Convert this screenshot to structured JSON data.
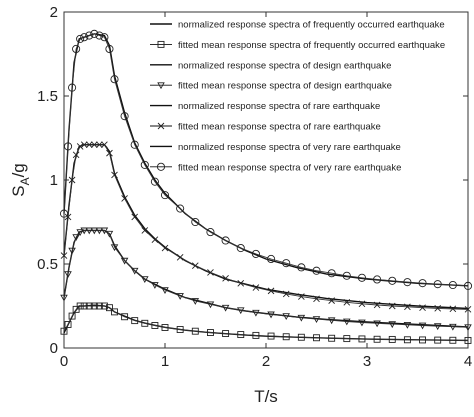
{
  "chart_data": {
    "type": "line",
    "xlabel": "T/s",
    "ylabel_main": "S",
    "ylabel_sub": "A",
    "ylabel_tail": "/g",
    "xlim": [
      0,
      4
    ],
    "ylim": [
      0,
      2
    ],
    "x_ticks": [
      0,
      1,
      2,
      3,
      4
    ],
    "x_tick_labels": [
      "0",
      "1",
      "2",
      "3",
      "4"
    ],
    "y_ticks": [
      0,
      0.5,
      1,
      1.5,
      2
    ],
    "y_tick_labels": [
      "0",
      "0.5",
      "1",
      "1.5",
      "2"
    ],
    "grid": false,
    "legend_position": "top-right",
    "legend": [
      {
        "label": "normalized response spectra of frequently occurred earthquake",
        "marker": "none"
      },
      {
        "label": "fitted mean response spectra of frequently occurred earthquake",
        "marker": "square"
      },
      {
        "label": "normalized response spectra of design earthquake",
        "marker": "none"
      },
      {
        "label": "fitted mean response spectra of design earthquake",
        "marker": "triangle-down"
      },
      {
        "label": "normalized response spectra of rare earthquake",
        "marker": "none"
      },
      {
        "label": "fitted mean response spectra of rare earthquake",
        "marker": "x"
      },
      {
        "label": "normalized response spectra of very rare earthquake",
        "marker": "none"
      },
      {
        "label": "fitted mean response spectra of very rare earthquake",
        "marker": "circle"
      }
    ],
    "series": [
      {
        "group": "frequently occurred",
        "normalized": [
          [
            0,
            0.09
          ],
          [
            0.05,
            0.15
          ],
          [
            0.1,
            0.21
          ],
          [
            0.15,
            0.25
          ],
          [
            0.2,
            0.25
          ],
          [
            0.3,
            0.255
          ],
          [
            0.4,
            0.25
          ],
          [
            0.45,
            0.24
          ],
          [
            0.5,
            0.215
          ],
          [
            0.6,
            0.19
          ],
          [
            0.7,
            0.165
          ],
          [
            0.8,
            0.148
          ],
          [
            0.9,
            0.135
          ],
          [
            1,
            0.123
          ],
          [
            1.2,
            0.106
          ],
          [
            1.4,
            0.094
          ],
          [
            1.6,
            0.085
          ],
          [
            1.8,
            0.077
          ],
          [
            2,
            0.07
          ],
          [
            2.3,
            0.064
          ],
          [
            2.6,
            0.059
          ],
          [
            3,
            0.053
          ],
          [
            3.5,
            0.049
          ],
          [
            4,
            0.045
          ]
        ],
        "fitted": [
          [
            0,
            0.1
          ],
          [
            0.04,
            0.14
          ],
          [
            0.08,
            0.19
          ],
          [
            0.12,
            0.23
          ],
          [
            0.16,
            0.25
          ],
          [
            0.2,
            0.25
          ],
          [
            0.25,
            0.25
          ],
          [
            0.3,
            0.25
          ],
          [
            0.35,
            0.25
          ],
          [
            0.4,
            0.25
          ],
          [
            0.45,
            0.24
          ],
          [
            0.5,
            0.215
          ],
          [
            0.6,
            0.186
          ],
          [
            0.7,
            0.163
          ],
          [
            0.8,
            0.147
          ],
          [
            0.9,
            0.134
          ],
          [
            1,
            0.122
          ],
          [
            1.15,
            0.11
          ],
          [
            1.3,
            0.1
          ],
          [
            1.45,
            0.092
          ],
          [
            1.6,
            0.086
          ],
          [
            1.75,
            0.08
          ],
          [
            1.9,
            0.075
          ],
          [
            2.05,
            0.071
          ],
          [
            2.2,
            0.067
          ],
          [
            2.35,
            0.064
          ],
          [
            2.5,
            0.061
          ],
          [
            2.65,
            0.058
          ],
          [
            2.8,
            0.056
          ],
          [
            2.95,
            0.054
          ],
          [
            3.1,
            0.052
          ],
          [
            3.25,
            0.051
          ],
          [
            3.4,
            0.049
          ],
          [
            3.55,
            0.048
          ],
          [
            3.7,
            0.047
          ],
          [
            3.85,
            0.046
          ],
          [
            4,
            0.045
          ]
        ]
      },
      {
        "group": "design",
        "normalized": [
          [
            0,
            0.3
          ],
          [
            0.05,
            0.48
          ],
          [
            0.1,
            0.63
          ],
          [
            0.15,
            0.69
          ],
          [
            0.2,
            0.7
          ],
          [
            0.3,
            0.7
          ],
          [
            0.4,
            0.7
          ],
          [
            0.45,
            0.68
          ],
          [
            0.5,
            0.61
          ],
          [
            0.6,
            0.52
          ],
          [
            0.7,
            0.46
          ],
          [
            0.8,
            0.41
          ],
          [
            0.9,
            0.38
          ],
          [
            1,
            0.35
          ],
          [
            1.2,
            0.3
          ],
          [
            1.4,
            0.27
          ],
          [
            1.6,
            0.24
          ],
          [
            1.8,
            0.22
          ],
          [
            2,
            0.205
          ],
          [
            2.3,
            0.185
          ],
          [
            2.6,
            0.17
          ],
          [
            3,
            0.155
          ],
          [
            3.5,
            0.14
          ],
          [
            4,
            0.125
          ]
        ],
        "fitted": [
          [
            0,
            0.3
          ],
          [
            0.04,
            0.44
          ],
          [
            0.08,
            0.58
          ],
          [
            0.12,
            0.66
          ],
          [
            0.16,
            0.69
          ],
          [
            0.2,
            0.7
          ],
          [
            0.25,
            0.7
          ],
          [
            0.3,
            0.7
          ],
          [
            0.35,
            0.7
          ],
          [
            0.4,
            0.7
          ],
          [
            0.45,
            0.68
          ],
          [
            0.5,
            0.6
          ],
          [
            0.6,
            0.52
          ],
          [
            0.7,
            0.46
          ],
          [
            0.8,
            0.41
          ],
          [
            0.9,
            0.375
          ],
          [
            1,
            0.345
          ],
          [
            1.15,
            0.31
          ],
          [
            1.3,
            0.28
          ],
          [
            1.45,
            0.26
          ],
          [
            1.6,
            0.24
          ],
          [
            1.75,
            0.225
          ],
          [
            1.9,
            0.21
          ],
          [
            2.05,
            0.2
          ],
          [
            2.2,
            0.19
          ],
          [
            2.35,
            0.18
          ],
          [
            2.5,
            0.172
          ],
          [
            2.65,
            0.165
          ],
          [
            2.8,
            0.158
          ],
          [
            2.95,
            0.152
          ],
          [
            3.1,
            0.147
          ],
          [
            3.25,
            0.142
          ],
          [
            3.4,
            0.138
          ],
          [
            3.55,
            0.134
          ],
          [
            3.7,
            0.13
          ],
          [
            3.85,
            0.127
          ],
          [
            4,
            0.124
          ]
        ]
      },
      {
        "group": "rare",
        "normalized": [
          [
            0,
            0.55
          ],
          [
            0.05,
            0.85
          ],
          [
            0.1,
            1.1
          ],
          [
            0.15,
            1.2
          ],
          [
            0.2,
            1.21
          ],
          [
            0.3,
            1.21
          ],
          [
            0.4,
            1.21
          ],
          [
            0.45,
            1.17
          ],
          [
            0.5,
            1.04
          ],
          [
            0.6,
            0.9
          ],
          [
            0.7,
            0.79
          ],
          [
            0.8,
            0.71
          ],
          [
            0.9,
            0.65
          ],
          [
            1,
            0.6
          ],
          [
            1.2,
            0.52
          ],
          [
            1.4,
            0.46
          ],
          [
            1.6,
            0.41
          ],
          [
            1.8,
            0.38
          ],
          [
            2,
            0.35
          ],
          [
            2.3,
            0.32
          ],
          [
            2.6,
            0.295
          ],
          [
            3,
            0.27
          ],
          [
            3.5,
            0.25
          ],
          [
            4,
            0.235
          ]
        ],
        "fitted": [
          [
            0,
            0.55
          ],
          [
            0.04,
            0.78
          ],
          [
            0.08,
            1.0
          ],
          [
            0.12,
            1.15
          ],
          [
            0.16,
            1.2
          ],
          [
            0.2,
            1.21
          ],
          [
            0.25,
            1.21
          ],
          [
            0.3,
            1.21
          ],
          [
            0.35,
            1.21
          ],
          [
            0.4,
            1.21
          ],
          [
            0.45,
            1.16
          ],
          [
            0.5,
            1.03
          ],
          [
            0.6,
            0.89
          ],
          [
            0.7,
            0.78
          ],
          [
            0.8,
            0.7
          ],
          [
            0.9,
            0.645
          ],
          [
            1,
            0.595
          ],
          [
            1.15,
            0.54
          ],
          [
            1.3,
            0.49
          ],
          [
            1.45,
            0.45
          ],
          [
            1.6,
            0.415
          ],
          [
            1.75,
            0.385
          ],
          [
            1.9,
            0.36
          ],
          [
            2.05,
            0.34
          ],
          [
            2.2,
            0.322
          ],
          [
            2.35,
            0.306
          ],
          [
            2.5,
            0.293
          ],
          [
            2.65,
            0.282
          ],
          [
            2.8,
            0.272
          ],
          [
            2.95,
            0.263
          ],
          [
            3.1,
            0.256
          ],
          [
            3.25,
            0.25
          ],
          [
            3.4,
            0.245
          ],
          [
            3.55,
            0.24
          ],
          [
            3.7,
            0.236
          ],
          [
            3.85,
            0.233
          ],
          [
            4,
            0.23
          ]
        ]
      },
      {
        "group": "very rare",
        "normalized": [
          [
            0,
            0.8
          ],
          [
            0.05,
            1.3
          ],
          [
            0.1,
            1.7
          ],
          [
            0.15,
            1.84
          ],
          [
            0.2,
            1.85
          ],
          [
            0.3,
            1.87
          ],
          [
            0.4,
            1.86
          ],
          [
            0.45,
            1.8
          ],
          [
            0.5,
            1.62
          ],
          [
            0.6,
            1.4
          ],
          [
            0.7,
            1.22
          ],
          [
            0.8,
            1.1
          ],
          [
            0.9,
            1.0
          ],
          [
            1,
            0.92
          ],
          [
            1.2,
            0.8
          ],
          [
            1.4,
            0.71
          ],
          [
            1.6,
            0.64
          ],
          [
            1.8,
            0.58
          ],
          [
            2,
            0.53
          ],
          [
            2.3,
            0.48
          ],
          [
            2.6,
            0.44
          ],
          [
            3,
            0.41
          ],
          [
            3.5,
            0.385
          ],
          [
            4,
            0.37
          ]
        ],
        "fitted": [
          [
            0,
            0.8
          ],
          [
            0.04,
            1.2
          ],
          [
            0.08,
            1.55
          ],
          [
            0.12,
            1.78
          ],
          [
            0.16,
            1.84
          ],
          [
            0.2,
            1.85
          ],
          [
            0.25,
            1.86
          ],
          [
            0.3,
            1.87
          ],
          [
            0.35,
            1.86
          ],
          [
            0.4,
            1.85
          ],
          [
            0.45,
            1.78
          ],
          [
            0.5,
            1.6
          ],
          [
            0.6,
            1.38
          ],
          [
            0.7,
            1.21
          ],
          [
            0.8,
            1.09
          ],
          [
            0.9,
            0.99
          ],
          [
            1,
            0.91
          ],
          [
            1.15,
            0.83
          ],
          [
            1.3,
            0.75
          ],
          [
            1.45,
            0.69
          ],
          [
            1.6,
            0.64
          ],
          [
            1.75,
            0.595
          ],
          [
            1.9,
            0.56
          ],
          [
            2.05,
            0.53
          ],
          [
            2.2,
            0.505
          ],
          [
            2.35,
            0.48
          ],
          [
            2.5,
            0.46
          ],
          [
            2.65,
            0.445
          ],
          [
            2.8,
            0.43
          ],
          [
            2.95,
            0.418
          ],
          [
            3.1,
            0.408
          ],
          [
            3.25,
            0.4
          ],
          [
            3.4,
            0.392
          ],
          [
            3.55,
            0.386
          ],
          [
            3.7,
            0.38
          ],
          [
            3.85,
            0.375
          ],
          [
            4,
            0.37
          ]
        ]
      }
    ]
  }
}
